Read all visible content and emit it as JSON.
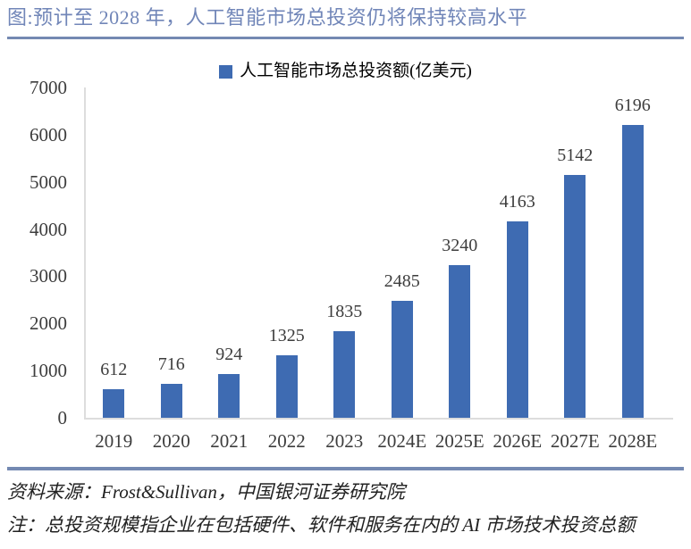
{
  "page_title": "图:预计至 2028 年，人工智能市场总投资仍将保持较高水平",
  "chart_data": {
    "type": "bar",
    "title": "人工智能市场总投资额(亿美元)",
    "legend": [
      "人工智能市场总投资额(亿美元)"
    ],
    "legend_position": "top-center",
    "categories": [
      "2019",
      "2020",
      "2021",
      "2022",
      "2023",
      "2024E",
      "2025E",
      "2026E",
      "2027E",
      "2028E"
    ],
    "values": [
      612,
      716,
      924,
      1325,
      1835,
      2485,
      3240,
      4163,
      5142,
      6196
    ],
    "xlabel": "",
    "ylabel": "",
    "ylim": [
      0,
      7000
    ],
    "yticks": [
      0,
      1000,
      2000,
      3000,
      4000,
      5000,
      6000,
      7000
    ],
    "grid": false,
    "data_labels": true
  },
  "footer": {
    "source": "资料来源：Frost&Sullivan，中国银河证券研究院",
    "note": "注：总投资规模指企业在包括硬件、软件和服务在内的 AI 市场技术投资总额"
  },
  "colors": {
    "bar": "#3E6BB2",
    "title_text": "#7186B8",
    "divider": "#7489B2",
    "axis_line": "#DDDDDD",
    "number_text": "#3D3D3D",
    "legend_text": "#000000",
    "footer_text": "#222222"
  }
}
